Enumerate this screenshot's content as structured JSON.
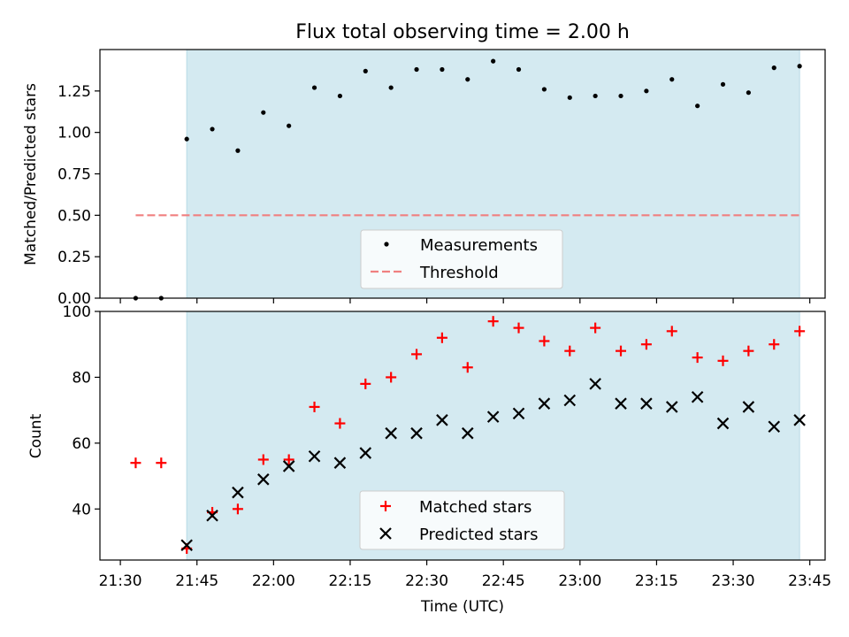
{
  "figure": {
    "title": "Flux total observing time = 2.00 h",
    "xlabel": "Time (UTC)"
  },
  "chart_data": [
    {
      "type": "scatter",
      "panel": "top",
      "ylabel": "Matched/Predicted stars",
      "xlim": [
        "21:26",
        "23:48"
      ],
      "ylim": [
        0,
        1.5
      ],
      "yticks": [
        0.0,
        0.25,
        0.5,
        0.75,
        1.0,
        1.25
      ],
      "ytick_labels": [
        "0.00",
        "0.25",
        "0.50",
        "0.75",
        "1.00",
        "1.25"
      ],
      "shaded_span": [
        "21:43",
        "23:43"
      ],
      "legend_placement": "lower-center",
      "series": [
        {
          "name": "Measurements",
          "marker": "dot",
          "color": "#000000",
          "x": [
            "21:33",
            "21:38",
            "21:43",
            "21:48",
            "21:53",
            "21:58",
            "22:03",
            "22:08",
            "22:13",
            "22:18",
            "22:23",
            "22:28",
            "22:33",
            "22:38",
            "22:43",
            "22:48",
            "22:53",
            "22:58",
            "23:03",
            "23:08",
            "23:13",
            "23:18",
            "23:23",
            "23:28",
            "23:33",
            "23:38",
            "23:43"
          ],
          "y": [
            0.0,
            0.0,
            0.96,
            1.02,
            0.89,
            1.12,
            1.04,
            1.27,
            1.22,
            1.37,
            1.27,
            1.38,
            1.38,
            1.32,
            1.43,
            1.38,
            1.26,
            1.21,
            1.22,
            1.22,
            1.25,
            1.32,
            1.16,
            1.29,
            1.24,
            1.39,
            1.4
          ]
        },
        {
          "name": "Threshold",
          "marker": "dashed-line",
          "color": "#f08080",
          "x": [
            "21:33",
            "23:43"
          ],
          "y": [
            0.5,
            0.5
          ]
        }
      ]
    },
    {
      "type": "scatter",
      "panel": "bottom",
      "ylabel": "Count",
      "xlim": [
        "21:26",
        "23:48"
      ],
      "ylim": [
        24.5,
        100
      ],
      "yticks": [
        40,
        60,
        80,
        100
      ],
      "ytick_labels": [
        "40",
        "60",
        "80",
        "100"
      ],
      "xticks": [
        "21:30",
        "21:45",
        "22:00",
        "22:15",
        "22:30",
        "22:45",
        "23:00",
        "23:15",
        "23:30",
        "23:45"
      ],
      "shaded_span": [
        "21:43",
        "23:43"
      ],
      "legend_placement": "lower-center",
      "series": [
        {
          "name": "Matched stars",
          "marker": "plus",
          "color": "#ff0000",
          "x": [
            "21:33",
            "21:38",
            "21:43",
            "21:48",
            "21:53",
            "21:58",
            "22:03",
            "22:08",
            "22:13",
            "22:18",
            "22:23",
            "22:28",
            "22:33",
            "22:38",
            "22:43",
            "22:48",
            "22:53",
            "22:58",
            "23:03",
            "23:08",
            "23:13",
            "23:18",
            "23:23",
            "23:28",
            "23:33",
            "23:38",
            "23:43"
          ],
          "y": [
            54,
            54,
            28,
            39,
            40,
            55,
            55,
            71,
            66,
            78,
            80,
            87,
            92,
            83,
            97,
            95,
            91,
            88,
            95,
            88,
            90,
            94,
            86,
            85,
            88,
            90,
            94
          ]
        },
        {
          "name": "Predicted stars",
          "marker": "x",
          "color": "#000000",
          "x": [
            "21:43",
            "21:48",
            "21:53",
            "21:58",
            "22:03",
            "22:08",
            "22:13",
            "22:18",
            "22:23",
            "22:28",
            "22:33",
            "22:38",
            "22:43",
            "22:48",
            "22:53",
            "22:58",
            "23:03",
            "23:08",
            "23:13",
            "23:18",
            "23:23",
            "23:28",
            "23:33",
            "23:38",
            "23:43"
          ],
          "y": [
            29,
            38,
            45,
            49,
            53,
            56,
            54,
            57,
            63,
            63,
            67,
            63,
            68,
            69,
            72,
            73,
            78,
            72,
            72,
            71,
            74,
            66,
            71,
            65,
            67
          ]
        }
      ]
    }
  ],
  "colors": {
    "shade": "#d4eaf1",
    "shade_edge": "#b8dbe6"
  }
}
